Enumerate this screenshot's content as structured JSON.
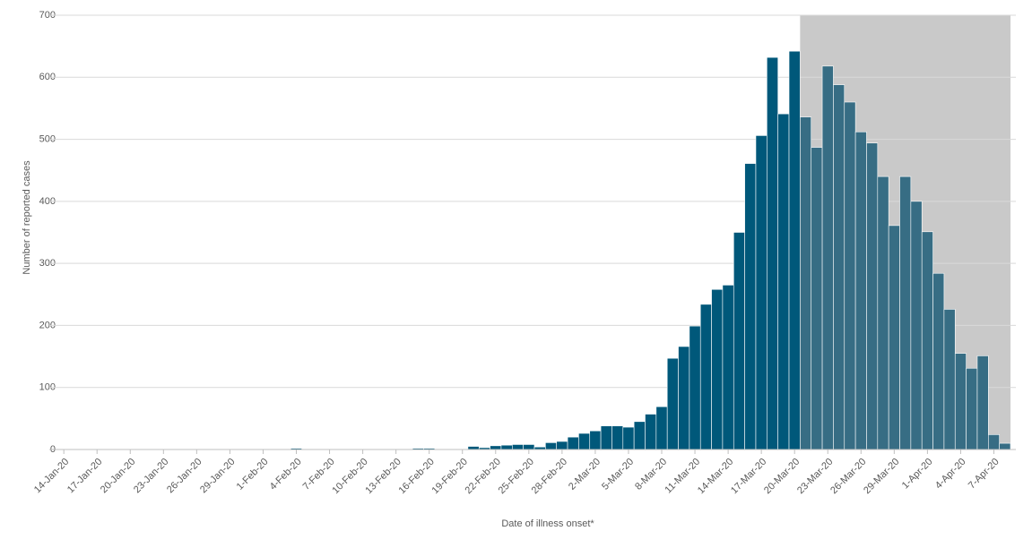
{
  "chart_data": {
    "type": "bar",
    "y_axis_label": "Number of reported cases",
    "x_axis_label": "Date of illness onset*",
    "categories": [
      "14-Jan-20",
      null,
      null,
      "17-Jan-20",
      null,
      null,
      "20-Jan-20",
      null,
      null,
      "23-Jan-20",
      null,
      null,
      "26-Jan-20",
      null,
      null,
      "29-Jan-20",
      null,
      null,
      "1-Feb-20",
      null,
      null,
      "4-Feb-20",
      null,
      null,
      "7-Feb-20",
      null,
      null,
      "10-Feb-20",
      null,
      null,
      "13-Feb-20",
      null,
      null,
      "16-Feb-20",
      null,
      null,
      "19-Feb-20",
      null,
      null,
      "22-Feb-20",
      null,
      null,
      "25-Feb-20",
      null,
      null,
      "28-Feb-20",
      null,
      null,
      "2-Mar-20",
      null,
      null,
      "5-Mar-20",
      null,
      null,
      "8-Mar-20",
      null,
      null,
      "11-Mar-20",
      null,
      null,
      "14-Mar-20",
      null,
      null,
      "17-Mar-20",
      null,
      null,
      "20-Mar-20",
      null,
      null,
      "23-Mar-20",
      null,
      null,
      "26-Mar-20",
      null,
      null,
      "29-Mar-20",
      null,
      null,
      "1-Apr-20",
      null,
      null,
      "4-Apr-20",
      null,
      null,
      "7-Apr-20",
      null
    ],
    "values": [
      0,
      1,
      0,
      1,
      0,
      0,
      0,
      1,
      1,
      0,
      1,
      1,
      0,
      1,
      1,
      0,
      0,
      0,
      1,
      0,
      0,
      2,
      1,
      0,
      0,
      1,
      1,
      0,
      0,
      1,
      1,
      1,
      2,
      2,
      0,
      1,
      0,
      5,
      3,
      6,
      7,
      8,
      8,
      4,
      11,
      13,
      20,
      26,
      30,
      38,
      38,
      36,
      45,
      57,
      69,
      147,
      166,
      199,
      234,
      258,
      265,
      350,
      461,
      506,
      632,
      541,
      642,
      536,
      487,
      618,
      588,
      560,
      512,
      494,
      440,
      361,
      440,
      400,
      351,
      284,
      226,
      155,
      131,
      151,
      24,
      10
    ],
    "color": "#00587a",
    "shade": {
      "from": 67,
      "to": 85,
      "color": "#c9c9c9",
      "bar_color": "#376d84"
    },
    "ylim": [
      0,
      700
    ],
    "yticks": [
      0,
      100,
      200,
      300,
      400,
      500,
      600,
      700
    ],
    "grid": true
  }
}
